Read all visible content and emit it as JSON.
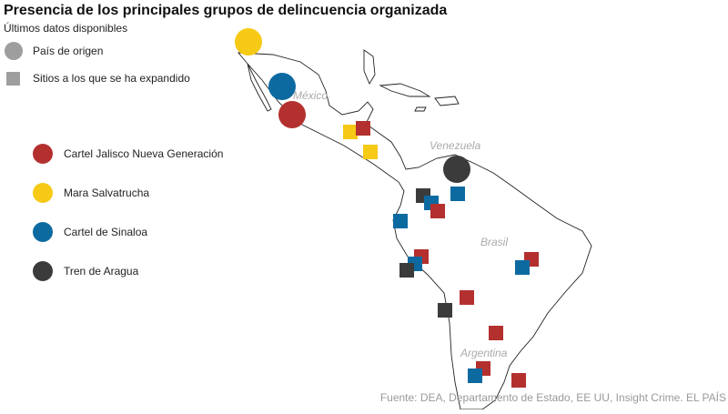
{
  "header": {
    "title": "Presencia de los principales grupos de delincuencia organizada",
    "subtitle": "Últimos datos disponibles"
  },
  "shape_legend": [
    {
      "label": "País de origen"
    },
    {
      "label": "Sitios a los que se ha expandido"
    }
  ],
  "groups": [
    {
      "name": "Cartel Jalisco Nueva Generación",
      "color": "#b3302f"
    },
    {
      "name": "Mara Salvatrucha",
      "color": "#f6c915"
    },
    {
      "name": "Cartel de Sinaloa",
      "color": "#0d6aa1"
    },
    {
      "name": "Tren de Aragua",
      "color": "#3b3b3b"
    }
  ],
  "countries": [
    "México",
    "Venezuela",
    "Brasil",
    "Argentina"
  ],
  "source": "Fuente: DEA, Departamento de Estado, EE UU, Insight Crime. EL PAÍS"
}
